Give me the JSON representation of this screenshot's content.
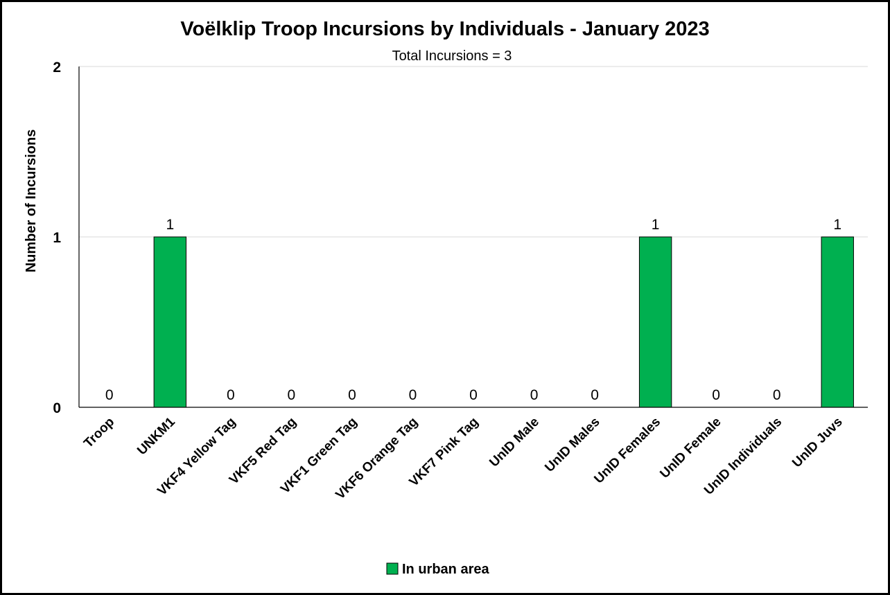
{
  "chart_data": {
    "type": "bar",
    "title": "Voëlklip Troop Incursions by Individuals - January 2023",
    "subtitle": "Total Incursions = 3",
    "ylabel": "Number of Incursions",
    "xlabel": "",
    "ylim": [
      0,
      2
    ],
    "yticks": [
      "0",
      "1",
      "2"
    ],
    "grid": true,
    "legend_position": "bottom",
    "categories": [
      "Troop",
      "UNKM1",
      "VKF4 Yellow Tag",
      "VKF5 Red Tag",
      "VKF1 Green Tag",
      "VKF6 Orange Tag",
      "VKF7 Pink Tag",
      "UnID Male",
      "UnID Males",
      "UnID Females",
      "UnID Female",
      "UnID Individuals",
      "UnID Juvs"
    ],
    "series": [
      {
        "name": "In urban area",
        "color": "#00b050",
        "values": [
          0,
          1,
          0,
          0,
          0,
          0,
          0,
          0,
          0,
          1,
          0,
          0,
          1
        ]
      }
    ]
  }
}
